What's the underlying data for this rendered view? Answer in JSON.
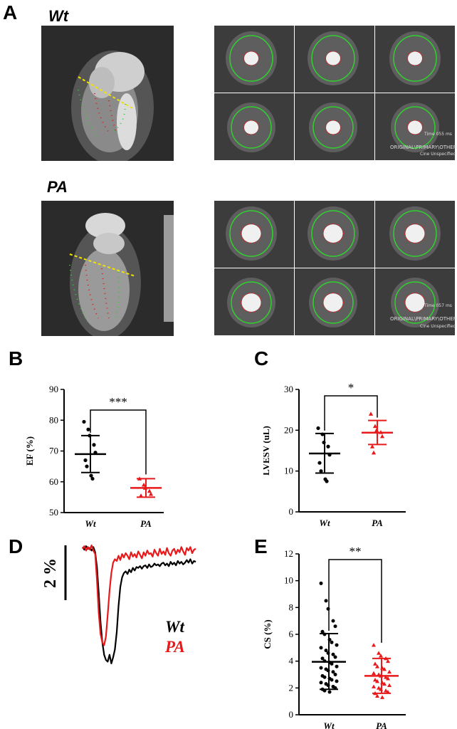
{
  "panels": {
    "A": "A",
    "B": "B",
    "C": "C",
    "D": "D",
    "E": "E"
  },
  "mri": {
    "wt_label": "Wt",
    "pa_label": "PA",
    "wt_overlay": [
      "Time 055 ms",
      "ORIGINAL\\PRIMARY\\OTHER",
      "Cine Unspecified"
    ],
    "pa_overlay": [
      "Time 057 ms",
      "ORIGINAL\\PRIMARY\\OTHER",
      "Cine Unspecified"
    ]
  },
  "colors": {
    "wt": "#000000",
    "pa": "#e8191b",
    "roi": "#2fd12f",
    "highlight": "#f2e400"
  },
  "chart_data": [
    {
      "id": "B",
      "type": "scatter",
      "ylabel": "EF (%)",
      "ylim": [
        50,
        90
      ],
      "yticks": [
        50,
        60,
        70,
        80,
        90
      ],
      "categories": [
        "Wt",
        "PA"
      ],
      "series": [
        {
          "name": "Wt",
          "color": "#000000",
          "marker": "circle",
          "mean": 69,
          "sd_low": 63,
          "sd_high": 75,
          "points": [
            79.5,
            77,
            75,
            72,
            69.5,
            67,
            65,
            62,
            61
          ]
        },
        {
          "name": "PA",
          "color": "#e8191b",
          "marker": "triangle",
          "mean": 58,
          "sd_low": 55,
          "sd_high": 61,
          "points": [
            61,
            59,
            58,
            57,
            56,
            55.5
          ]
        }
      ],
      "significance": "***"
    },
    {
      "id": "C",
      "type": "scatter",
      "ylabel": "LVESV (uL)",
      "ylim": [
        0,
        30
      ],
      "yticks": [
        0,
        10,
        20,
        30
      ],
      "categories": [
        "Wt",
        "PA"
      ],
      "series": [
        {
          "name": "Wt",
          "color": "#000000",
          "marker": "circle",
          "mean": 14.3,
          "sd_low": 9.5,
          "sd_high": 19.2,
          "points": [
            20.5,
            19,
            17,
            16,
            14,
            12,
            10,
            8,
            7.5
          ]
        },
        {
          "name": "PA",
          "color": "#e8191b",
          "marker": "triangle",
          "mean": 19.4,
          "sd_low": 16.5,
          "sd_high": 22.4,
          "points": [
            24,
            21,
            20,
            19.5,
            18.5,
            16,
            14.5
          ]
        }
      ],
      "significance": "*"
    },
    {
      "id": "D",
      "type": "line",
      "scale_label": "2 %",
      "series": [
        {
          "name": "Wt",
          "color": "#000000",
          "values": [
            0.2,
            0.5,
            0.1,
            0.4,
            0.3,
            0.6,
            0.2,
            0.8,
            2.5,
            5.5,
            8.8,
            11.2,
            12.6,
            13.2,
            13.4,
            12.6,
            13.6,
            12.9,
            12.0,
            10.0,
            7.0,
            4.8,
            3.7,
            3.2,
            3.0,
            3.3,
            2.8,
            3.1,
            2.6,
            2.9,
            2.5,
            2.6,
            2.4,
            2.7,
            2.4,
            2.3,
            2.6,
            2.2,
            2.5,
            2.4,
            2.1,
            2.3,
            2.2,
            2.4,
            2.1,
            2.0,
            2.3,
            2.1,
            2.4,
            1.9,
            2.2,
            2.0,
            2.3,
            1.8,
            2.1,
            1.9,
            2.2,
            2.0,
            1.7,
            2.0,
            1.6,
            2.1,
            1.8,
            1.9
          ]
        },
        {
          "name": "PA",
          "color": "#e8191b",
          "values": [
            0.4,
            0.1,
            0.6,
            0.2,
            0.5,
            0.0,
            0.6,
            1.0,
            4.0,
            7.8,
            10.2,
            11.2,
            11.5,
            10.5,
            8.0,
            5.2,
            3.2,
            2.0,
            1.6,
            1.8,
            1.2,
            1.7,
            1.0,
            1.4,
            0.9,
            1.2,
            1.6,
            0.8,
            1.3,
            1.0,
            1.4,
            0.7,
            1.1,
            1.5,
            0.8,
            1.2,
            0.6,
            1.0,
            0.9,
            1.3,
            0.5,
            0.9,
            1.2,
            0.4,
            1.0,
            0.7,
            1.1,
            0.3,
            0.9,
            1.2,
            0.6,
            0.4,
            1.0,
            0.5,
            0.8,
            0.2,
            0.7,
            1.1,
            0.3,
            0.6,
            0.2,
            0.9,
            0.5,
            0.4
          ]
        }
      ]
    },
    {
      "id": "E",
      "type": "scatter",
      "ylabel": "CS (%)",
      "ylim": [
        0,
        12
      ],
      "yticks": [
        0,
        2,
        4,
        6,
        8,
        10,
        12
      ],
      "categories": [
        "Wt",
        "PA"
      ],
      "series": [
        {
          "name": "Wt",
          "color": "#000000",
          "marker": "circle",
          "mean": 3.95,
          "sd_low": 1.9,
          "sd_high": 6.05,
          "points": [
            9.8,
            8.5,
            7.9,
            7.0,
            6.6,
            6.2,
            6.0,
            5.6,
            5.4,
            5.2,
            5.0,
            4.8,
            4.6,
            4.5,
            4.3,
            4.2,
            4.0,
            3.9,
            3.8,
            3.6,
            3.5,
            3.4,
            3.3,
            3.2,
            3.0,
            2.9,
            2.8,
            2.7,
            2.6,
            2.5,
            2.4,
            2.3,
            2.2,
            2.1,
            2.0,
            1.9,
            1.8,
            1.7
          ]
        },
        {
          "name": "PA",
          "color": "#e8191b",
          "marker": "triangle",
          "mean": 2.9,
          "sd_low": 1.6,
          "sd_high": 4.2,
          "points": [
            5.2,
            4.6,
            4.4,
            4.2,
            4.0,
            3.8,
            3.6,
            3.5,
            3.4,
            3.2,
            3.1,
            3.0,
            2.9,
            2.8,
            2.7,
            2.6,
            2.5,
            2.4,
            2.3,
            2.2,
            2.1,
            2.0,
            1.9,
            1.8,
            1.7,
            1.6,
            1.4,
            1.3
          ]
        }
      ],
      "significance": "**"
    }
  ]
}
